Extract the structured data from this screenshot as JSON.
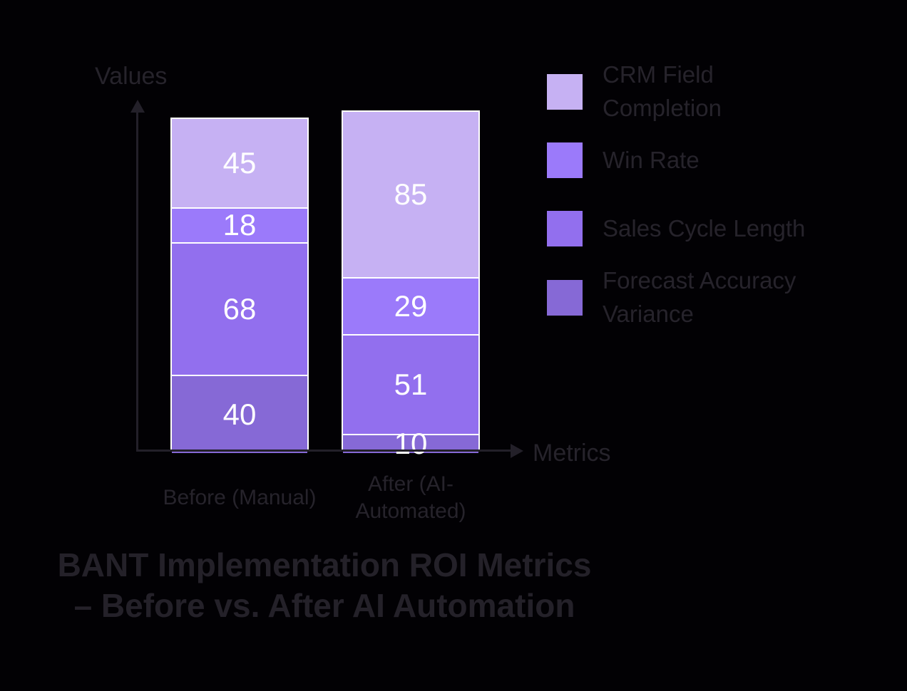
{
  "colors": {
    "background": "#000000",
    "text": "#26232B",
    "axis": "#232029",
    "value_label": "#FFFFFF",
    "segment_border": "#FFFFFF"
  },
  "axes": {
    "y_label": "Values",
    "x_label": "Metrics"
  },
  "title_lines": [
    "BANT Implementation ROI Metrics",
    "– Before vs. After AI Automation"
  ],
  "chart_data": {
    "type": "bar",
    "stacked": true,
    "stack_order": "first-series-on-top",
    "title": "BANT Implementation ROI Metrics – Before vs. After AI Automation",
    "xlabel": "Metrics",
    "ylabel": "Values",
    "categories": [
      "Before (Manual)",
      "After (AI-Automated)"
    ],
    "series": [
      {
        "name": "CRM Field Completion",
        "color": "#C6B1F3",
        "values": [
          45,
          85
        ]
      },
      {
        "name": "Win Rate",
        "color": "#9B7AFA",
        "values": [
          18,
          29
        ]
      },
      {
        "name": "Sales Cycle Length",
        "color": "#926FEE",
        "values": [
          68,
          51
        ]
      },
      {
        "name": "Forecast Accuracy Variance",
        "color": "#8669D6",
        "values": [
          40,
          10
        ]
      }
    ],
    "totals": [
      171,
      175
    ],
    "value_labels": true,
    "legend_position": "right",
    "grid": false
  }
}
